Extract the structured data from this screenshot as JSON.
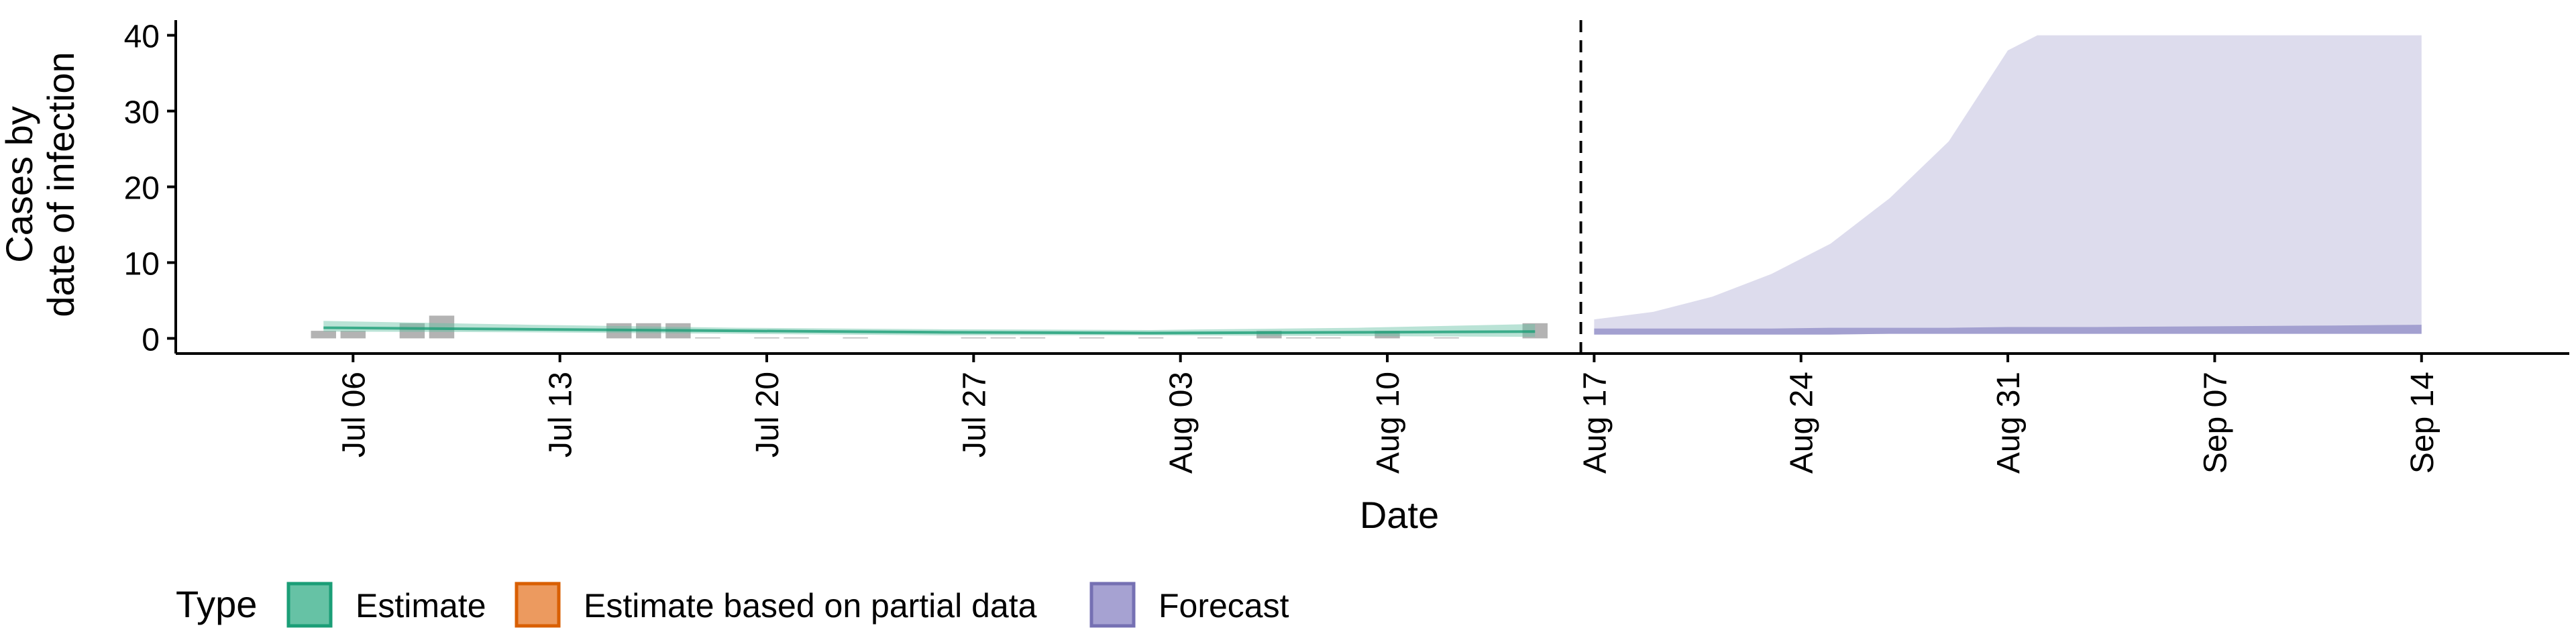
{
  "chart_data": {
    "type": "area",
    "title": "",
    "xlabel": "Date",
    "ylabel_lines": [
      "Cases by",
      "date of infection"
    ],
    "ylim": [
      -2,
      42
    ],
    "yticks": [
      0,
      10,
      20,
      30,
      40
    ],
    "xlim": [
      "2020-06-30",
      "2020-09-19"
    ],
    "xticks": [
      {
        "date": "2020-07-06",
        "label": "Jul 06"
      },
      {
        "date": "2020-07-13",
        "label": "Jul 13"
      },
      {
        "date": "2020-07-20",
        "label": "Jul 20"
      },
      {
        "date": "2020-07-27",
        "label": "Jul 27"
      },
      {
        "date": "2020-08-03",
        "label": "Aug 03"
      },
      {
        "date": "2020-08-10",
        "label": "Aug 10"
      },
      {
        "date": "2020-08-17",
        "label": "Aug 17"
      },
      {
        "date": "2020-08-24",
        "label": "Aug 24"
      },
      {
        "date": "2020-08-31",
        "label": "Aug 31"
      },
      {
        "date": "2020-09-07",
        "label": "Sep 07"
      },
      {
        "date": "2020-09-14",
        "label": "Sep 14"
      }
    ],
    "forecast_start": "2020-08-16",
    "reported_cases": {
      "color": "#a6a6a6",
      "points": [
        [
          "2020-07-05",
          1
        ],
        [
          "2020-07-06",
          1
        ],
        [
          "2020-07-08",
          2
        ],
        [
          "2020-07-09",
          3
        ],
        [
          "2020-07-15",
          2
        ],
        [
          "2020-07-16",
          2
        ],
        [
          "2020-07-17",
          2
        ],
        [
          "2020-07-18",
          0
        ],
        [
          "2020-07-20",
          0
        ],
        [
          "2020-07-21",
          0
        ],
        [
          "2020-07-23",
          0
        ],
        [
          "2020-07-27",
          0
        ],
        [
          "2020-07-28",
          0
        ],
        [
          "2020-07-29",
          0
        ],
        [
          "2020-07-31",
          0
        ],
        [
          "2020-08-02",
          0
        ],
        [
          "2020-08-04",
          0
        ],
        [
          "2020-08-06",
          1
        ],
        [
          "2020-08-07",
          0
        ],
        [
          "2020-08-08",
          0
        ],
        [
          "2020-08-10",
          1
        ],
        [
          "2020-08-12",
          0
        ],
        [
          "2020-08-15",
          2
        ]
      ]
    },
    "series": [
      {
        "name": "Estimate",
        "color": "#1b9e77",
        "fill": "#66c2a5",
        "x": [
          "2020-07-05",
          "2020-07-12",
          "2020-07-19",
          "2020-07-26",
          "2020-08-02",
          "2020-08-09",
          "2020-08-15"
        ],
        "median": [
          1.4,
          1.2,
          1.0,
          0.8,
          0.7,
          0.8,
          0.9
        ],
        "lower": [
          0.9,
          0.8,
          0.6,
          0.4,
          0.4,
          0.3,
          0.2
        ],
        "upper": [
          2.3,
          1.8,
          1.4,
          1.2,
          1.1,
          1.4,
          1.9
        ]
      },
      {
        "name": "Forecast",
        "color": "#7570b3",
        "fill": "#8f8cc5",
        "x": [
          "2020-08-17",
          "2020-08-19",
          "2020-08-21",
          "2020-08-23",
          "2020-08-25",
          "2020-08-27",
          "2020-08-29",
          "2020-08-31",
          "2020-09-01",
          "2020-09-03",
          "2020-09-07",
          "2020-09-11",
          "2020-09-14"
        ],
        "lower": [
          0.5,
          0.5,
          0.5,
          0.5,
          0.5,
          0.6,
          0.6,
          0.6,
          0.6,
          0.6,
          0.6,
          0.6,
          0.6
        ],
        "inner_upper": [
          1.3,
          1.3,
          1.3,
          1.3,
          1.4,
          1.4,
          1.4,
          1.5,
          1.5,
          1.5,
          1.6,
          1.7,
          1.8
        ],
        "upper": [
          2.5,
          3.5,
          5.5,
          8.5,
          12.5,
          18.5,
          26.0,
          38.0,
          40.0,
          40.0,
          40.0,
          40.0,
          40.0
        ]
      }
    ],
    "legend": {
      "title": "Type",
      "position": "bottom",
      "items": [
        {
          "label": "Estimate",
          "fill": "#66c2a5",
          "stroke": "#1b9e77"
        },
        {
          "label": "Estimate based on partial data",
          "fill": "#ec9a5f",
          "stroke": "#d95f02"
        },
        {
          "label": "Forecast",
          "fill": "#a6a2d2",
          "stroke": "#7570b3"
        }
      ]
    },
    "grid": false
  }
}
